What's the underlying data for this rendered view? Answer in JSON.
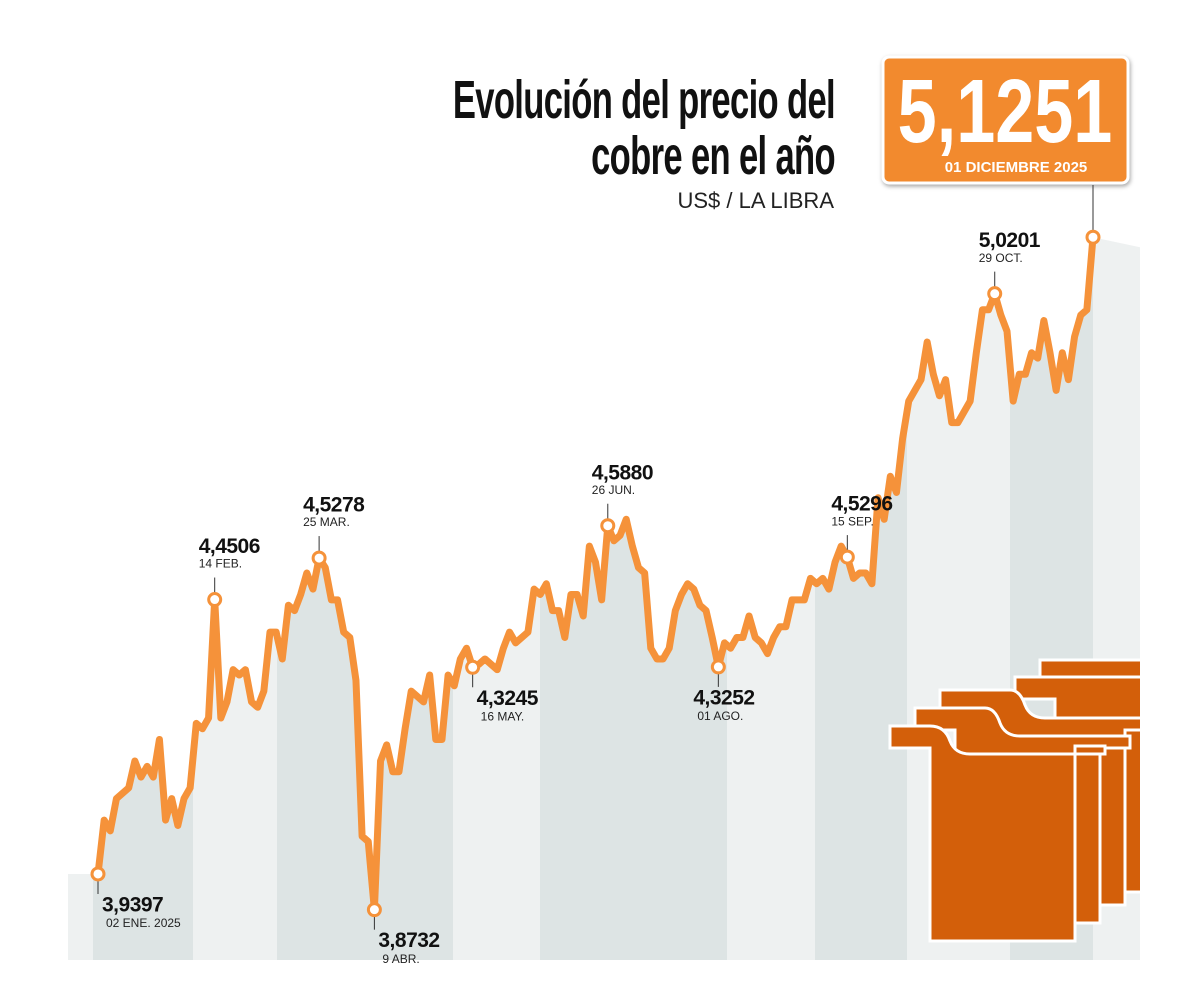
{
  "chart_data": {
    "type": "line",
    "title": "Evolución del precio del cobre en el año",
    "subtitle": "US$ / LA LIBRA",
    "color": "#f5923a",
    "ylim": [
      3.8,
      5.2
    ],
    "categories": [
      "02 ENE. 2025",
      null,
      null,
      null,
      null,
      null,
      null,
      null,
      null,
      null,
      null,
      null,
      null,
      null,
      null,
      null,
      null,
      null,
      null,
      "14 FEB.",
      null,
      null,
      null,
      null,
      null,
      null,
      null,
      null,
      null,
      null,
      null,
      null,
      null,
      null,
      null,
      null,
      "25 MAR.",
      null,
      null,
      null,
      null,
      null,
      null,
      null,
      null,
      "9 ABR.",
      null,
      null,
      null,
      null,
      null,
      null,
      null,
      null,
      null,
      null,
      null,
      null,
      null,
      null,
      null,
      "16 MAY.",
      null,
      null,
      null,
      null,
      null,
      null,
      null,
      null,
      null,
      null,
      null,
      null,
      null,
      null,
      null,
      null,
      null,
      null,
      null,
      null,
      null,
      "26 JUN.",
      null,
      null,
      null,
      null,
      null,
      null,
      null,
      null,
      null,
      null,
      null,
      null,
      null,
      null,
      null,
      null,
      null,
      "01 AGO.",
      null,
      null,
      null,
      null,
      null,
      null,
      null,
      null,
      null,
      null,
      null,
      null,
      null,
      null,
      null,
      null,
      null,
      null,
      null,
      null,
      "15 SEP.",
      null,
      null,
      null,
      null,
      null,
      null,
      null,
      null,
      null,
      null,
      null,
      null,
      null,
      null,
      null,
      null,
      null,
      null,
      null,
      null,
      null,
      null,
      null,
      "29 OCT.",
      null,
      null,
      null,
      null,
      null,
      null,
      null,
      null,
      null,
      null,
      null,
      null,
      null,
      null,
      null,
      "01 DICIEMBRE 2025"
    ],
    "values": [
      3.9397,
      4.04,
      4.02,
      4.08,
      4.09,
      4.1,
      4.15,
      4.12,
      4.14,
      4.12,
      4.19,
      4.04,
      4.08,
      4.03,
      4.08,
      4.1,
      4.22,
      4.21,
      4.23,
      4.4506,
      4.23,
      4.26,
      4.32,
      4.31,
      4.32,
      4.26,
      4.25,
      4.28,
      4.39,
      4.39,
      4.34,
      4.44,
      4.43,
      4.46,
      4.5,
      4.47,
      4.5278,
      4.51,
      4.45,
      4.45,
      4.39,
      4.38,
      4.3,
      4.01,
      4.0,
      3.8732,
      4.15,
      4.18,
      4.13,
      4.13,
      4.21,
      4.28,
      4.27,
      4.26,
      4.31,
      4.19,
      4.19,
      4.31,
      4.29,
      4.34,
      4.36,
      4.3245,
      4.33,
      4.34,
      4.33,
      4.32,
      4.36,
      4.39,
      4.37,
      4.38,
      4.39,
      4.47,
      4.46,
      4.48,
      4.43,
      4.43,
      4.38,
      4.46,
      4.46,
      4.42,
      4.55,
      4.52,
      4.45,
      4.588,
      4.56,
      4.57,
      4.6,
      4.55,
      4.51,
      4.5,
      4.36,
      4.34,
      4.34,
      4.36,
      4.43,
      4.46,
      4.48,
      4.47,
      4.44,
      4.43,
      4.38,
      4.3252,
      4.37,
      4.36,
      4.38,
      4.38,
      4.42,
      4.38,
      4.37,
      4.35,
      4.38,
      4.4,
      4.4,
      4.45,
      4.45,
      4.45,
      4.49,
      4.48,
      4.49,
      4.47,
      4.52,
      4.55,
      4.5296,
      4.49,
      4.5,
      4.5,
      4.48,
      4.64,
      4.6,
      4.68,
      4.65,
      4.75,
      4.82,
      4.84,
      4.86,
      4.93,
      4.87,
      4.83,
      4.86,
      4.78,
      4.78,
      4.8,
      4.82,
      4.91,
      4.99,
      4.99,
      5.0201,
      4.98,
      4.95,
      4.82,
      4.87,
      4.87,
      4.91,
      4.9,
      4.97,
      4.91,
      4.84,
      4.91,
      4.86,
      4.94,
      4.98,
      4.99,
      5.1251
    ],
    "value_labels": [
      "3,9397",
      null,
      null,
      null,
      null,
      null,
      null,
      null,
      null,
      null,
      null,
      null,
      null,
      null,
      null,
      null,
      null,
      null,
      null,
      "4,4506",
      null,
      null,
      null,
      null,
      null,
      null,
      null,
      null,
      null,
      null,
      null,
      null,
      null,
      null,
      null,
      null,
      "4,5278",
      null,
      null,
      null,
      null,
      null,
      null,
      null,
      null,
      "3,8732",
      null,
      null,
      null,
      null,
      null,
      null,
      null,
      null,
      null,
      null,
      null,
      null,
      null,
      null,
      null,
      "4,3245",
      null,
      null,
      null,
      null,
      null,
      null,
      null,
      null,
      null,
      null,
      null,
      null,
      null,
      null,
      null,
      null,
      null,
      null,
      null,
      null,
      null,
      "4,5880",
      null,
      null,
      null,
      null,
      null,
      null,
      null,
      null,
      null,
      null,
      null,
      null,
      null,
      null,
      null,
      null,
      null,
      "4,3252",
      null,
      null,
      null,
      null,
      null,
      null,
      null,
      null,
      null,
      null,
      null,
      null,
      null,
      null,
      null,
      null,
      null,
      null,
      null,
      null,
      "4,5296",
      null,
      null,
      null,
      null,
      null,
      null,
      null,
      null,
      null,
      null,
      null,
      null,
      null,
      null,
      null,
      null,
      null,
      null,
      null,
      null,
      null,
      null,
      null,
      "5,0201",
      null,
      null,
      null,
      null,
      null,
      null,
      null,
      null,
      null,
      null,
      null,
      null,
      null,
      null,
      null,
      "5,1251"
    ]
  }
}
